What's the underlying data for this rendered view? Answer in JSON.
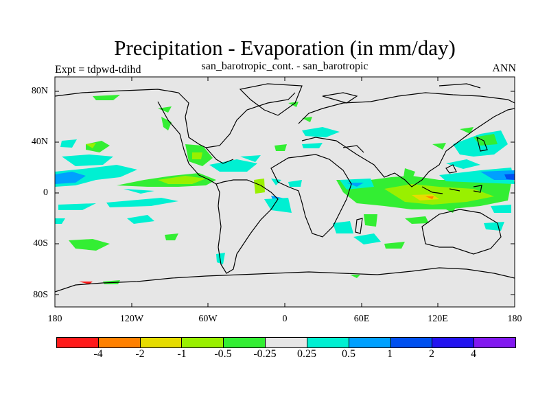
{
  "title": "Precipitation - Evaporation (in mm/day)",
  "subtitle": "san_barotropic_cont. - san_barotropic",
  "left_label": "Expt = tdpwd-tdihd",
  "right_label": "ANN",
  "lat_ticks": [
    "80N",
    "40N",
    "0",
    "40S",
    "80S"
  ],
  "lon_ticks": [
    "180",
    "120W",
    "60W",
    "0",
    "60E",
    "120E",
    "180"
  ],
  "colorbar": {
    "colors": [
      "#ff1a1a",
      "#ff8000",
      "#e6dc00",
      "#99f000",
      "#33ee33",
      "#e6e6e6",
      "#00f0d2",
      "#00a0ff",
      "#0050f0",
      "#2314f0",
      "#8219f0"
    ],
    "labels": [
      "-4",
      "-2",
      "-1",
      "-0.5",
      "-0.25",
      "0.25",
      "0.5",
      "1",
      "2",
      "4"
    ]
  },
  "colors": {
    "background_field": "#e6e6e6",
    "coastline": "#000000"
  }
}
